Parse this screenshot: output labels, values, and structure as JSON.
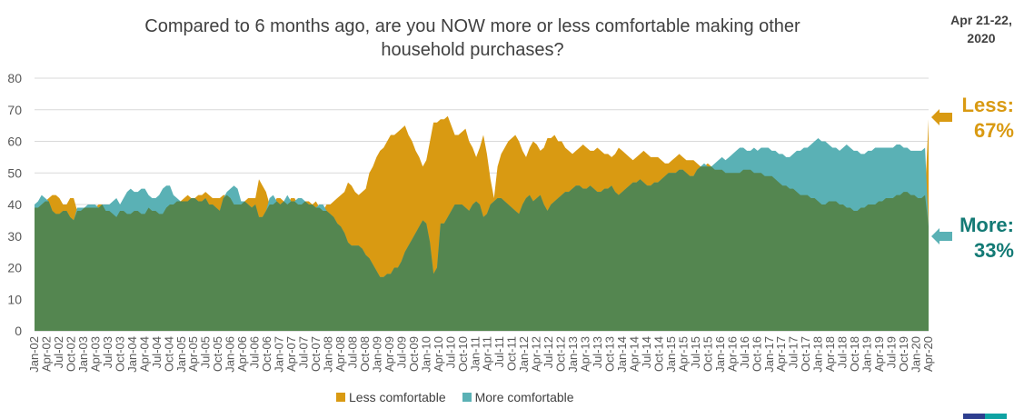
{
  "header": {
    "title_line1": "Compared to 6 months ago, are you NOW more or less comfortable making other",
    "title_line2": "household purchases?",
    "date_line1": "Apr 21-22,",
    "date_line2": "2020"
  },
  "callouts": {
    "less_label": "Less:",
    "less_value": "67%",
    "more_label": "More:",
    "more_value": "33%"
  },
  "legend": {
    "less": "Less comfortable",
    "more": "More comfortable"
  },
  "colors": {
    "less": "#d99a12",
    "more": "#5ab1b5",
    "overlap": "#548650",
    "more_text": "#137a75",
    "axis_text": "#595959",
    "grid": "#d9d9d9"
  },
  "chart_data": {
    "type": "area",
    "title": "Compared to 6 months ago, are you NOW more or less comfortable making other household purchases?",
    "ylim": [
      0,
      80
    ],
    "yticks": [
      0,
      10,
      20,
      30,
      40,
      50,
      60,
      70,
      80
    ],
    "grid": true,
    "legend_position": "bottom",
    "tick_labels": [
      "Jan-02",
      "Apr-02",
      "Jul-02",
      "Oct-02",
      "Jan-03",
      "Apr-03",
      "Jul-03",
      "Oct-03",
      "Jan-04",
      "Apr-04",
      "Jul-04",
      "Oct-04",
      "Jan-05",
      "Apr-05",
      "Jul-05",
      "Oct-05",
      "Jan-06",
      "Apr-06",
      "Jul-06",
      "Oct-06",
      "Jan-07",
      "Apr-07",
      "Jul-07",
      "Oct-07",
      "Jan-08",
      "Apr-08",
      "Jul-08",
      "Oct-08",
      "Jan-09",
      "Apr-09",
      "Jul-09",
      "Oct-09",
      "Jan-10",
      "Apr-10",
      "Jul-10",
      "Oct-10",
      "Jan-11",
      "Apr-11",
      "Jul-11",
      "Oct-11",
      "Jan-12",
      "Apr-12",
      "Jul-12",
      "Oct-12",
      "Jan-13",
      "Apr-13",
      "Jul-13",
      "Oct-13",
      "Jan-14",
      "Apr-14",
      "Jul-14",
      "Oct-14",
      "Jan-15",
      "Apr-15",
      "Jul-15",
      "Oct-15",
      "Jan-16",
      "Apr-16",
      "Jul-16",
      "Oct-16",
      "Jan-17",
      "Apr-17",
      "Jul-17",
      "Oct-17",
      "Jan-18",
      "Apr-18",
      "Jul-18",
      "Oct-18",
      "Jan-19",
      "Apr-19",
      "Jul-19",
      "Oct-19",
      "Jan-20",
      "Apr-20"
    ],
    "series": [
      {
        "name": "Less comfortable",
        "values": [
          39,
          39,
          40,
          41,
          42,
          43,
          43,
          42,
          40,
          40,
          42,
          42,
          38,
          38,
          39,
          39,
          39,
          39,
          40,
          40,
          38,
          38,
          37,
          36,
          38,
          38,
          37,
          37,
          38,
          38,
          37,
          37,
          39,
          38,
          38,
          37,
          37,
          39,
          40,
          40,
          41,
          41,
          42,
          43,
          42,
          42,
          43,
          43,
          44,
          43,
          42,
          42,
          42,
          43,
          43,
          42,
          40,
          40,
          40,
          41,
          42,
          42,
          42,
          48,
          46,
          44,
          40,
          40,
          42,
          42,
          41,
          40,
          42,
          42,
          40,
          40,
          41,
          41,
          40,
          41,
          39,
          38,
          40,
          40,
          41,
          42,
          43,
          44,
          47,
          46,
          44,
          43,
          44,
          45,
          50,
          52,
          55,
          57,
          58,
          60,
          62,
          62,
          63,
          64,
          65,
          62,
          60,
          57,
          55,
          52,
          54,
          60,
          66,
          66,
          67,
          67,
          68,
          65,
          62,
          62,
          63,
          64,
          60,
          58,
          55,
          58,
          62,
          56,
          48,
          42,
          52,
          56,
          58,
          60,
          61,
          62,
          60,
          57,
          55,
          58,
          60,
          59,
          57,
          58,
          61,
          61,
          62,
          60,
          60,
          58,
          57,
          56,
          57,
          58,
          59,
          58,
          57,
          57,
          58,
          57,
          56,
          56,
          55,
          56,
          58,
          57,
          56,
          55,
          54,
          55,
          56,
          57,
          56,
          55,
          55,
          55,
          54,
          53,
          53,
          54,
          55,
          56,
          55,
          54,
          54,
          54,
          53,
          52,
          52,
          53,
          52,
          51,
          51,
          51,
          50,
          50,
          50,
          50,
          50,
          51,
          51,
          51,
          50,
          50,
          50,
          49,
          49,
          49,
          48,
          47,
          46,
          46,
          45,
          45,
          44,
          43,
          43,
          43,
          42,
          42,
          41,
          40,
          40,
          41,
          41,
          41,
          40,
          40,
          39,
          39,
          38,
          38,
          39,
          39,
          40,
          40,
          40,
          41,
          41,
          42,
          42,
          42,
          43,
          43,
          44,
          44,
          43,
          43,
          42,
          42,
          43,
          67
        ]
      },
      {
        "name": "More comfortable",
        "values": [
          40,
          41,
          43,
          42,
          41,
          38,
          37,
          37,
          38,
          38,
          36,
          35,
          39,
          39,
          39,
          40,
          40,
          40,
          39,
          40,
          40,
          40,
          41,
          42,
          40,
          42,
          44,
          45,
          44,
          44,
          45,
          45,
          43,
          42,
          42,
          43,
          45,
          46,
          46,
          43,
          42,
          41,
          41,
          41,
          42,
          42,
          41,
          41,
          42,
          40,
          40,
          39,
          38,
          42,
          44,
          45,
          46,
          45,
          41,
          41,
          40,
          39,
          40,
          36,
          36,
          38,
          42,
          43,
          41,
          40,
          41,
          43,
          41,
          41,
          42,
          42,
          41,
          40,
          40,
          39,
          40,
          40,
          38,
          37,
          36,
          34,
          33,
          31,
          28,
          27,
          27,
          27,
          26,
          24,
          23,
          21,
          19,
          17,
          17,
          18,
          18,
          20,
          20,
          22,
          25,
          27,
          29,
          31,
          33,
          35,
          34,
          28,
          18,
          20,
          34,
          34,
          36,
          38,
          40,
          40,
          40,
          39,
          38,
          40,
          41,
          40,
          36,
          37,
          40,
          41,
          42,
          42,
          41,
          40,
          39,
          38,
          37,
          40,
          42,
          43,
          41,
          42,
          43,
          40,
          38,
          40,
          41,
          42,
          43,
          44,
          44,
          45,
          46,
          46,
          45,
          45,
          46,
          45,
          44,
          44,
          45,
          45,
          46,
          44,
          43,
          44,
          45,
          46,
          47,
          47,
          48,
          47,
          46,
          46,
          47,
          47,
          48,
          49,
          50,
          50,
          50,
          51,
          51,
          50,
          49,
          49,
          51,
          52,
          53,
          52,
          52,
          53,
          54,
          55,
          54,
          55,
          56,
          57,
          58,
          58,
          57,
          57,
          58,
          57,
          58,
          58,
          58,
          57,
          57,
          56,
          56,
          55,
          55,
          56,
          57,
          57,
          58,
          58,
          59,
          60,
          61,
          60,
          60,
          59,
          58,
          58,
          57,
          58,
          59,
          58,
          57,
          57,
          56,
          56,
          57,
          57,
          58,
          58,
          58,
          58,
          58,
          58,
          59,
          59,
          58,
          58,
          57,
          57,
          57,
          57,
          58,
          33
        ]
      }
    ]
  }
}
